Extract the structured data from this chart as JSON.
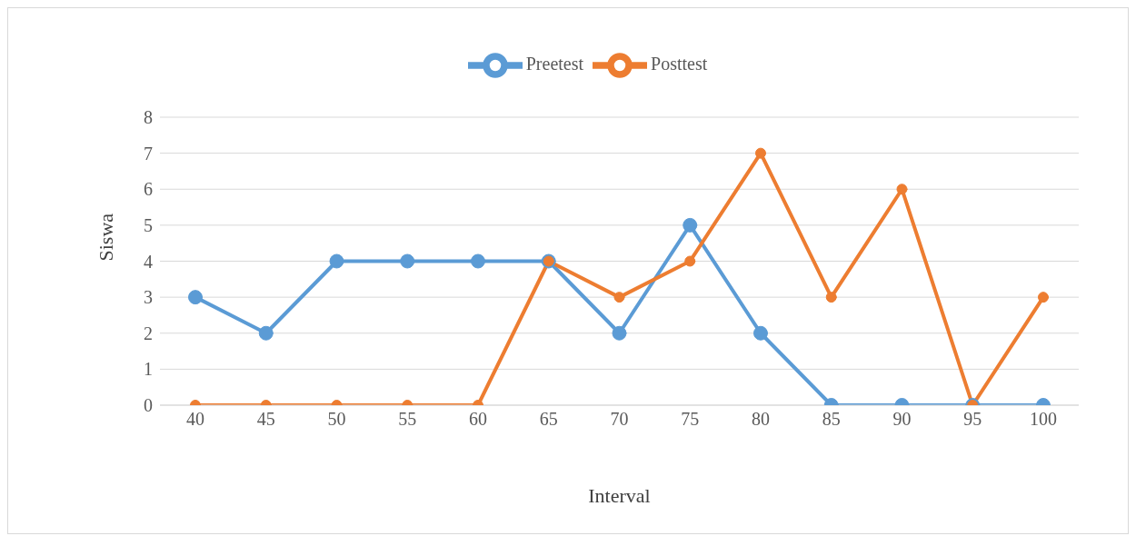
{
  "chart_data": {
    "type": "line",
    "xlabel": "Interval",
    "ylabel": "Siswa",
    "categories": [
      "40",
      "45",
      "50",
      "55",
      "60",
      "65",
      "70",
      "75",
      "80",
      "85",
      "90",
      "95",
      "100"
    ],
    "series": [
      {
        "name": "Preetest",
        "color": "#5b9bd5",
        "values": [
          3,
          2,
          4,
          4,
          4,
          4,
          2,
          5,
          2,
          0,
          0,
          0,
          0
        ]
      },
      {
        "name": "Posttest",
        "color": "#ed7d31",
        "values": [
          0,
          0,
          0,
          0,
          0,
          4,
          3,
          4,
          7,
          3,
          6,
          0,
          3
        ]
      }
    ],
    "ylim": [
      0,
      8
    ],
    "yticks": [
      0,
      1,
      2,
      3,
      4,
      5,
      6,
      7,
      8
    ],
    "grid": "y",
    "legend": "top",
    "marker": "circle",
    "line_style": "solid"
  }
}
